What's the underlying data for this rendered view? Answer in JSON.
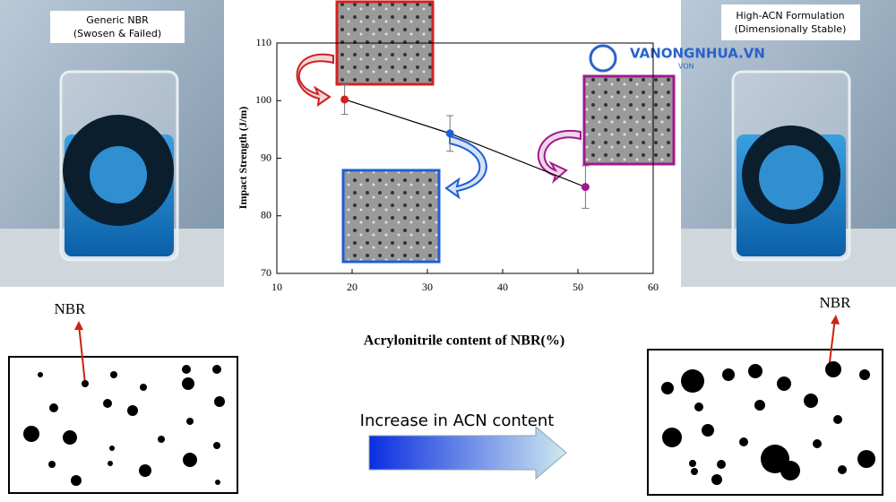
{
  "chart_data": {
    "type": "line",
    "x_label": "Acrylonitrile content of NBR(%)",
    "y_label": "Impact Strength (J/m)",
    "x": [
      19,
      33,
      51
    ],
    "values": [
      100.2,
      94.3,
      85
    ],
    "errors": [
      2.6,
      3.1,
      3.7
    ],
    "point_colors": [
      "#d42020",
      "#1f5fd6",
      "#a0198c"
    ],
    "line_color": "#000000",
    "xlim": [
      10,
      60
    ],
    "xticks": [
      10,
      20,
      30,
      40,
      50,
      60
    ],
    "ylim": [
      70,
      110
    ],
    "yticks": [
      70,
      80,
      90,
      100,
      110
    ]
  },
  "left_label": [
    "Generic NBR",
    "(Swosen & Failed)"
  ],
  "right_label": [
    "High-ACN Formulation",
    "(Dimensionally Stable)"
  ],
  "left_arrow_label": "NBR",
  "right_arrow_label": "NBR",
  "arrow_text": "Increase in ACN content",
  "watermark": [
    "VANONGNHUA.VN",
    "VON"
  ]
}
